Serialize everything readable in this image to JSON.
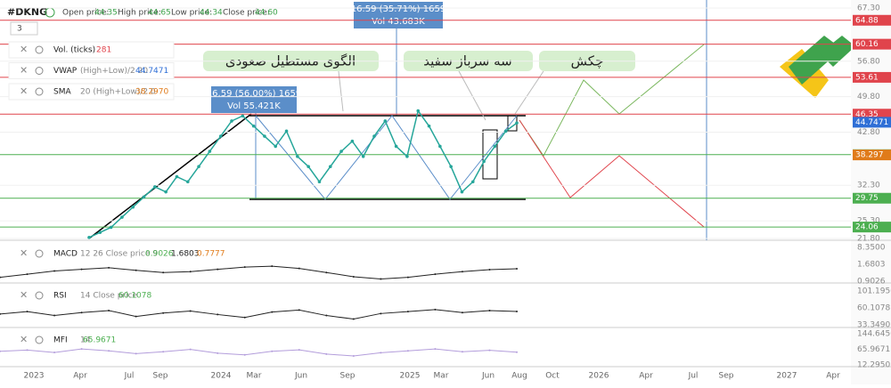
{
  "header": {
    "symbol": "#DKNG",
    "open_label": "Open price:",
    "open": "44.35",
    "high_label": "High price:",
    "high": "44.65",
    "low_label": "Low price:",
    "low": "44.34",
    "close_label": "Close price:",
    "close": "44.60",
    "interval": "3"
  },
  "legends": [
    {
      "name": "Vol. (ticks)",
      "params": "",
      "value": "281"
    },
    {
      "name": "VWAP",
      "params": "(High+Low)/2 20",
      "value": "44.7471"
    },
    {
      "name": "SMA",
      "params": "20 (High+Low)/2 0",
      "value": "38.2970"
    }
  ],
  "annotations": {
    "rectangle": "الگوی مستطیل صعودی",
    "soldiers": "سه سرباز سفید",
    "hammer": "چکش",
    "callout_1": {
      "line1": "16.59 (56.00%) 1659",
      "line2": "Vol 55.421K"
    },
    "callout_2": {
      "line1": "16.59 (35.71%) 1659",
      "line2": "Vol 43.683K"
    }
  },
  "main_chart": {
    "ylim": [
      21.8,
      67.3
    ],
    "yticks": [
      {
        "value": 67.3,
        "label": "67.30"
      },
      {
        "value": 56.8,
        "label": "56.80"
      },
      {
        "value": 49.8,
        "label": "49.80"
      },
      {
        "value": 42.8,
        "label": "42.80"
      },
      {
        "value": 32.3,
        "label": "32.30"
      },
      {
        "value": 25.3,
        "label": "25.30"
      },
      {
        "value": 21.8,
        "label": "21.80"
      }
    ],
    "levels": [
      {
        "value": 64.88,
        "color": "#e0444c"
      },
      {
        "value": 60.16,
        "color": "#e0444c"
      },
      {
        "value": 53.61,
        "color": "#e0444c"
      },
      {
        "value": 46.35,
        "color": "#e0444c"
      },
      {
        "value": 44.7471,
        "color": "#2f6fd6"
      },
      {
        "value": 38.35,
        "color": "#4caf50"
      },
      {
        "value": 38.297,
        "color": "#e07b1a"
      },
      {
        "value": 29.75,
        "color": "#4caf50"
      },
      {
        "value": 24.06,
        "color": "#4caf50"
      }
    ],
    "close": [
      22,
      23,
      24,
      26,
      28,
      30,
      32,
      31,
      34,
      33,
      36,
      39,
      42,
      45,
      46,
      44,
      42,
      40,
      43,
      38,
      36,
      33,
      36,
      39,
      41,
      38,
      42,
      45,
      40,
      38,
      47,
      44,
      40,
      36,
      31,
      33,
      37,
      40,
      43,
      44.6
    ]
  },
  "macd": {
    "label": "MACD",
    "params": "12 26 Close price 9",
    "v1": "0.9026",
    "v2": "1.6803",
    "v3": "0.7777",
    "ylim": [
      -2.2,
      8.35
    ],
    "ticks": [
      "8.3500",
      "1.6803",
      "0.9026"
    ],
    "values": [
      -1,
      0,
      1,
      1.5,
      2,
      1.2,
      0.5,
      0.8,
      1.5,
      2.2,
      2.5,
      1.8,
      0.5,
      -0.8,
      -1.5,
      -1,
      0,
      0.8,
      1.4,
      1.6803
    ]
  },
  "rsi": {
    "label": "RSI",
    "params": "14 Close price",
    "v1": "60.1078",
    "ylim": [
      33.349,
      101.195
    ],
    "ticks": [
      "101.1950",
      "60.1078",
      "33.3490"
    ],
    "values": [
      55,
      60,
      52,
      58,
      62,
      50,
      57,
      61,
      54,
      48,
      59,
      63,
      52,
      45,
      56,
      60,
      64,
      58,
      62,
      60.1078
    ]
  },
  "mfi": {
    "label": "MFI",
    "params": "14",
    "v1": "65.9671",
    "ylim": [
      12.295,
      144.645
    ],
    "ticks": [
      "144.6450",
      "65.9671",
      "12.2950"
    ],
    "values": [
      70,
      75,
      65,
      80,
      72,
      60,
      68,
      78,
      62,
      55,
      70,
      76,
      58,
      50,
      64,
      72,
      80,
      68,
      74,
      65.9671
    ]
  },
  "time_axis": [
    "2023",
    "Apr",
    "Jul",
    "Sep",
    "2024",
    "Mar",
    "Jun",
    "Sep",
    "2025",
    "Mar",
    "Jun",
    "Aug",
    "Oct",
    "2026",
    "Apr",
    "Jul",
    "Sep",
    "2027",
    "Apr"
  ]
}
